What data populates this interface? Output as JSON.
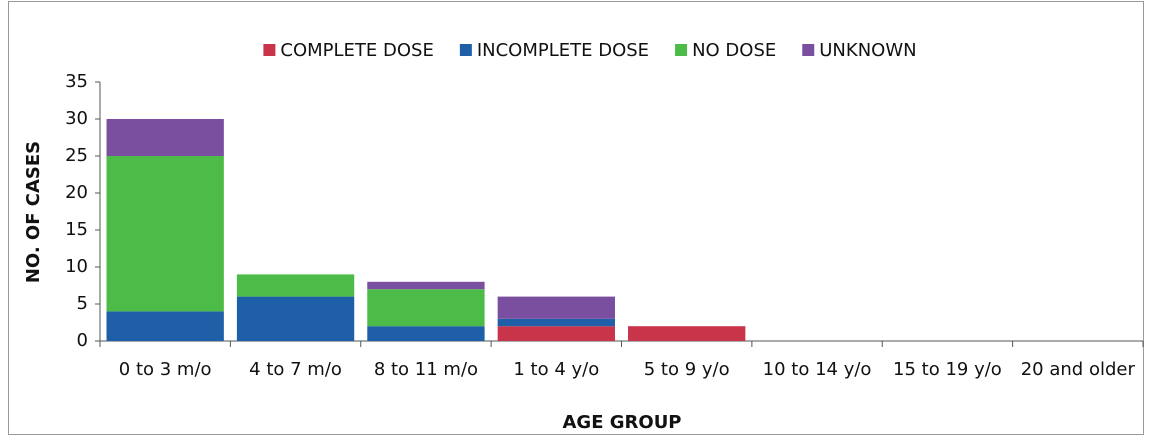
{
  "chart_data": {
    "type": "bar",
    "stacked": true,
    "categories": [
      "0 to 3 m/o",
      "4 to 7 m/o",
      "8 to 11 m/o",
      "1 to 4 y/o",
      "5 to 9 y/o",
      "10 to 14 y/o",
      "15 to 19 y/o",
      "20 and older"
    ],
    "series": [
      {
        "name": "COMPLETE DOSE",
        "color": "#c8344a",
        "values": [
          0,
          0,
          0,
          2,
          2,
          0,
          0,
          0
        ]
      },
      {
        "name": "INCOMPLETE DOSE",
        "color": "#1f5fa8",
        "values": [
          4,
          6,
          2,
          1,
          0,
          0,
          0,
          0
        ]
      },
      {
        "name": "NO DOSE",
        "color": "#4cbb47",
        "values": [
          21,
          3,
          5,
          0,
          0,
          0,
          0,
          0
        ]
      },
      {
        "name": "UNKNOWN",
        "color": "#7b4fa0",
        "values": [
          5,
          0,
          1,
          3,
          0,
          0,
          0,
          0
        ]
      }
    ],
    "y_label": "NO. OF CASES",
    "x_label": "AGE GROUP",
    "ylim": [
      0,
      35
    ],
    "yticks": [
      0,
      5,
      10,
      15,
      20,
      25,
      30,
      35
    ],
    "grid": false,
    "legend": "top"
  }
}
